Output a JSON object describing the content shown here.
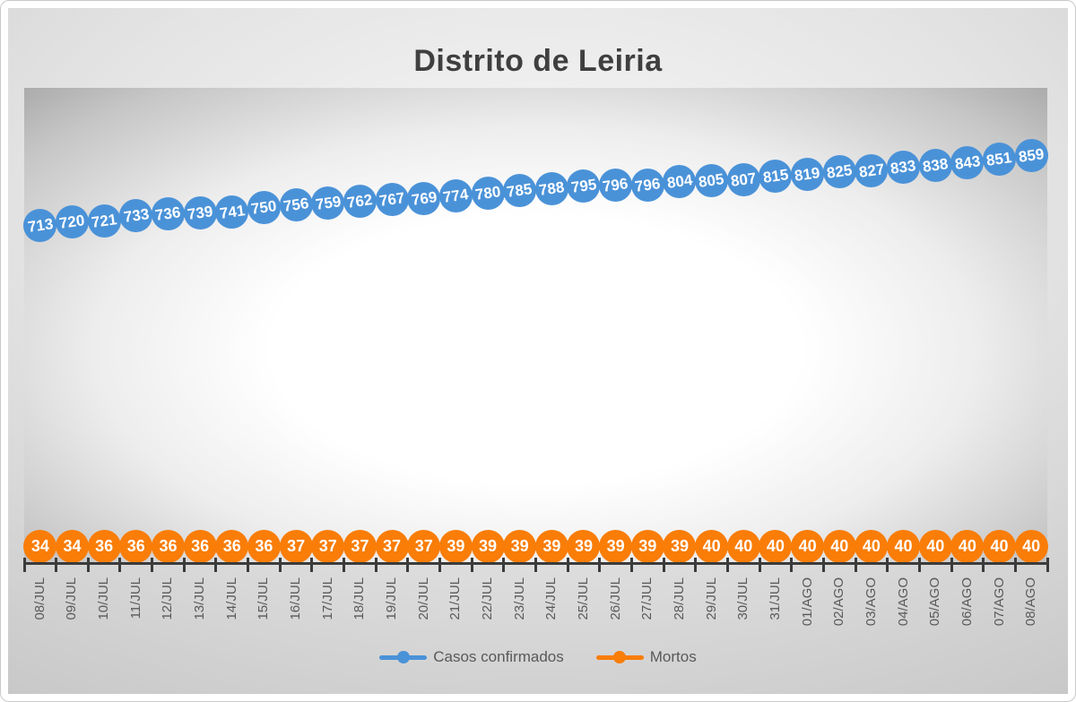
{
  "title": "Distrito de Leiria",
  "legend": {
    "confirmed_label": "Casos confirmados",
    "deaths_label": "Mortos"
  },
  "colors": {
    "confirmed": "#4a92d8",
    "deaths": "#f97d07",
    "data_label_text": "#ffffff",
    "title_text": "#3f3f3f",
    "axis_text": "#595959",
    "axis_line": "#3b3b3b"
  },
  "chart_data": {
    "type": "line",
    "title": "Distrito de Leiria",
    "categories": [
      "08/JUL",
      "09/JUL",
      "10/JUL",
      "11/JUL",
      "12/JUL",
      "13/JUL",
      "14/JUL",
      "15/JUL",
      "16/JUL",
      "17/JUL",
      "18/JUL",
      "19/JUL",
      "20/JUL",
      "21/JUL",
      "22/JUL",
      "23/JUL",
      "24/JUL",
      "25/JUL",
      "26/JUL",
      "27/JUL",
      "28/JUL",
      "29/JUL",
      "30/JUL",
      "31/JUL",
      "01/AGO",
      "02/AGO",
      "03/AGO",
      "04/AGO",
      "05/AGO",
      "06/AGO",
      "07/AGO",
      "08/AGO"
    ],
    "series": [
      {
        "name": "Casos confirmados",
        "color": "#4a92d8",
        "values": [
          713,
          720,
          721,
          733,
          736,
          739,
          741,
          750,
          756,
          759,
          762,
          767,
          769,
          774,
          780,
          785,
          788,
          795,
          796,
          796,
          804,
          805,
          807,
          815,
          819,
          825,
          827,
          833,
          838,
          843,
          851,
          859
        ]
      },
      {
        "name": "Mortos",
        "color": "#f97d07",
        "values": [
          34,
          34,
          36,
          36,
          36,
          36,
          36,
          36,
          37,
          37,
          37,
          37,
          37,
          39,
          39,
          39,
          39,
          39,
          39,
          39,
          39,
          40,
          40,
          40,
          40,
          40,
          40,
          40,
          40,
          40,
          40,
          40
        ]
      }
    ],
    "xlabel": "",
    "ylabel": "",
    "y_axis_visible": false,
    "grid": false,
    "data_labels": "on-marker",
    "legend_position": "bottom"
  }
}
